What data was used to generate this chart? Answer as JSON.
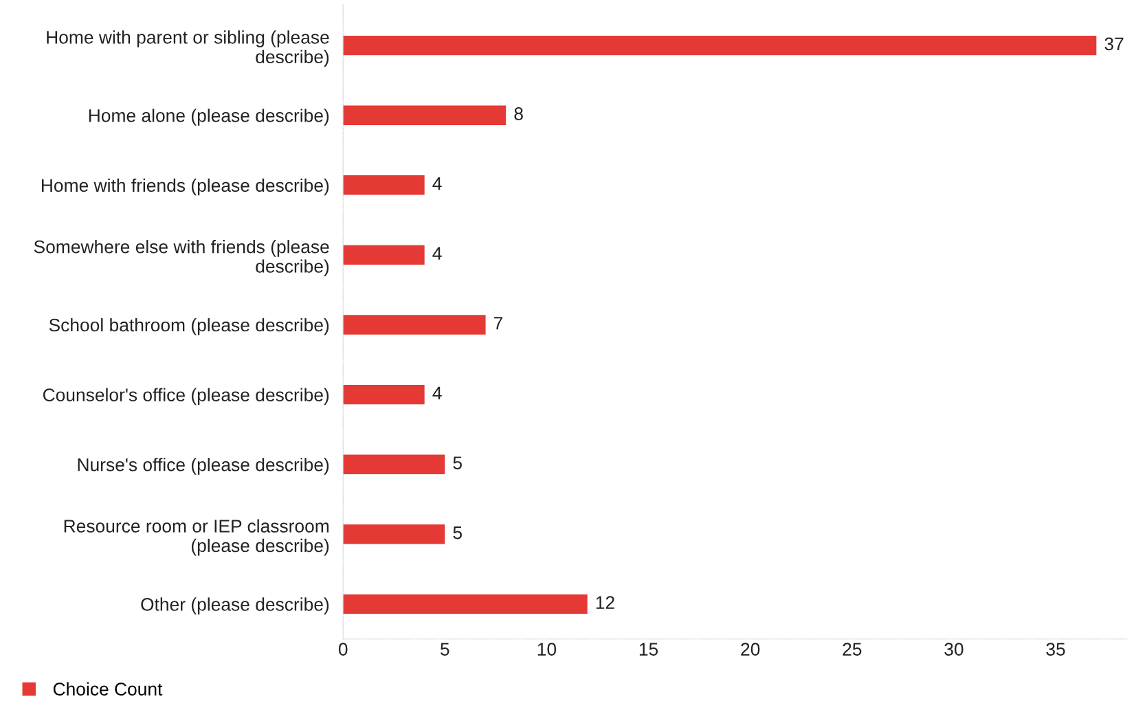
{
  "chart_data": {
    "type": "bar",
    "orientation": "horizontal",
    "categories": [
      "Home with parent or sibling (please\ndescribe)",
      "Home alone (please describe)",
      "Home with friends (please describe)",
      "Somewhere else with friends (please\ndescribe)",
      "School bathroom (please describe)",
      "Counselor's office (please describe)",
      "Nurse's office (please describe)",
      "Resource room or IEP classroom\n(please describe)",
      "Other (please describe)"
    ],
    "series": [
      {
        "name": "Choice Count",
        "color": "#e53935",
        "values": [
          37,
          8,
          4,
          4,
          7,
          4,
          5,
          5,
          12
        ]
      }
    ],
    "xlim": [
      0,
      38.5
    ],
    "xticks": [
      0,
      5,
      10,
      15,
      20,
      25,
      30,
      35
    ],
    "data_labels": true,
    "grid": false,
    "legend": "bottom left"
  }
}
